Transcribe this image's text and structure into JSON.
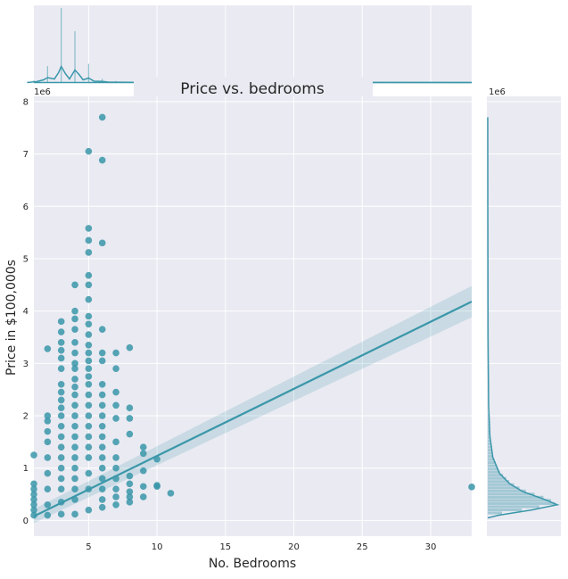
{
  "chart_data": {
    "type": "scatter",
    "title": "Price vs. bedrooms",
    "xlabel": "No. Bedrooms",
    "ylabel": "Price in $100,000s",
    "y_offset_label": "1e6",
    "marginal_y_offset_label": "1e6",
    "xlim": [
      1,
      33
    ],
    "ylim": [
      -0.3,
      8.1
    ],
    "x_ticks": [
      5,
      10,
      15,
      20,
      25,
      30
    ],
    "y_ticks": [
      0,
      1,
      2,
      3,
      4,
      5,
      6,
      7,
      8
    ],
    "grid": true,
    "color": "#3a97a9",
    "regression": {
      "x": [
        1,
        33
      ],
      "y": [
        0.08,
        4.18
      ],
      "ci_upper": [
        0.22,
        4.48
      ],
      "ci_lower": [
        -0.05,
        3.88
      ]
    },
    "points": {
      "x": [
        1,
        1,
        1,
        1,
        1,
        1,
        1,
        1,
        2,
        2,
        2,
        2,
        2,
        2,
        2,
        2,
        2,
        2,
        3,
        3,
        3,
        3,
        3,
        3,
        3,
        3,
        3,
        3,
        3,
        3,
        3,
        3,
        3,
        3,
        3,
        3,
        3,
        3,
        4,
        4,
        4,
        4,
        4,
        4,
        4,
        4,
        4,
        4,
        4,
        4,
        4,
        4,
        4,
        4,
        4,
        4,
        4,
        4,
        4,
        4,
        5,
        5,
        5,
        5,
        5,
        5,
        5,
        5,
        5,
        5,
        5,
        5,
        5,
        5,
        5,
        5,
        5,
        5,
        5,
        5,
        5,
        5,
        5,
        5,
        5,
        5,
        6,
        6,
        6,
        6,
        6,
        6,
        6,
        6,
        6,
        6,
        6,
        6,
        6,
        6,
        6,
        6,
        6,
        6,
        6,
        7,
        7,
        7,
        7,
        7,
        7,
        7,
        7,
        7,
        7,
        7,
        7,
        8,
        8,
        8,
        8,
        8,
        8,
        8,
        8,
        8,
        9,
        9,
        9,
        9,
        9,
        10,
        10,
        10,
        11,
        33
      ],
      "y": [
        1.25,
        0.7,
        0.6,
        0.5,
        0.4,
        0.3,
        0.2,
        0.1,
        3.28,
        2.0,
        1.9,
        1.7,
        1.5,
        1.2,
        0.9,
        0.6,
        0.3,
        0.1,
        3.8,
        3.6,
        3.4,
        3.25,
        3.1,
        2.9,
        2.6,
        2.45,
        2.3,
        2.15,
        2.0,
        1.8,
        1.6,
        1.4,
        1.2,
        1.0,
        0.8,
        0.6,
        0.35,
        0.12,
        4.5,
        4.0,
        3.85,
        3.65,
        3.4,
        3.2,
        3.0,
        2.9,
        2.7,
        2.55,
        2.4,
        2.2,
        2.0,
        1.8,
        1.6,
        1.4,
        1.2,
        1.0,
        0.8,
        0.6,
        0.4,
        0.12,
        7.05,
        5.58,
        5.35,
        5.12,
        4.68,
        4.5,
        4.22,
        3.9,
        3.75,
        3.55,
        3.35,
        3.2,
        3.05,
        2.9,
        2.75,
        2.6,
        2.4,
        2.2,
        2.0,
        1.8,
        1.6,
        1.4,
        1.2,
        0.9,
        0.6,
        0.2,
        7.7,
        6.88,
        5.3,
        3.65,
        3.2,
        3.05,
        2.6,
        2.4,
        2.2,
        2.0,
        1.8,
        1.6,
        1.4,
        1.2,
        1.0,
        0.8,
        0.6,
        0.4,
        0.25,
        3.2,
        2.9,
        2.45,
        2.2,
        1.95,
        1.5,
        1.2,
        1.0,
        0.8,
        0.6,
        0.45,
        0.3,
        3.3,
        2.15,
        1.95,
        1.65,
        0.85,
        0.7,
        0.55,
        0.45,
        0.35,
        1.4,
        1.28,
        0.95,
        0.65,
        0.45,
        1.17,
        0.67,
        0.65,
        0.52,
        0.64
      ]
    },
    "marginal_x": {
      "type": "histogram-kde",
      "bars": [
        {
          "x": 1,
          "h": 0.03
        },
        {
          "x": 2,
          "h": 0.22
        },
        {
          "x": 3,
          "h": 1.0
        },
        {
          "x": 4,
          "h": 0.69
        },
        {
          "x": 5,
          "h": 0.25
        },
        {
          "x": 6,
          "h": 0.05
        },
        {
          "x": 7,
          "h": 0.02
        },
        {
          "x": 8,
          "h": 0.01
        }
      ],
      "kde": [
        {
          "x": 0.5,
          "d": 0.0
        },
        {
          "x": 1.2,
          "d": 0.01
        },
        {
          "x": 1.7,
          "d": 0.03
        },
        {
          "x": 2.0,
          "d": 0.055
        },
        {
          "x": 2.5,
          "d": 0.04
        },
        {
          "x": 2.8,
          "d": 0.11
        },
        {
          "x": 3.0,
          "d": 0.18
        },
        {
          "x": 3.3,
          "d": 0.1
        },
        {
          "x": 3.6,
          "d": 0.04
        },
        {
          "x": 4.0,
          "d": 0.14
        },
        {
          "x": 4.3,
          "d": 0.09
        },
        {
          "x": 4.6,
          "d": 0.03
        },
        {
          "x": 5.0,
          "d": 0.05
        },
        {
          "x": 5.4,
          "d": 0.015
        },
        {
          "x": 6.0,
          "d": 0.012
        },
        {
          "x": 6.5,
          "d": 0.004
        },
        {
          "x": 8.0,
          "d": 0.002
        },
        {
          "x": 33.0,
          "d": 0.0
        }
      ]
    },
    "marginal_y": {
      "type": "histogram-kde",
      "kde": [
        {
          "y": 0.05,
          "d": 0.0
        },
        {
          "y": 0.1,
          "d": 0.15
        },
        {
          "y": 0.2,
          "d": 0.6
        },
        {
          "y": 0.3,
          "d": 0.95
        },
        {
          "y": 0.4,
          "d": 0.78
        },
        {
          "y": 0.55,
          "d": 0.48
        },
        {
          "y": 0.7,
          "d": 0.3
        },
        {
          "y": 0.9,
          "d": 0.16
        },
        {
          "y": 1.2,
          "d": 0.07
        },
        {
          "y": 1.6,
          "d": 0.03
        },
        {
          "y": 2.2,
          "d": 0.012
        },
        {
          "y": 3.5,
          "d": 0.004
        },
        {
          "y": 6.0,
          "d": 0.001
        },
        {
          "y": 7.7,
          "d": 0.0
        }
      ]
    }
  }
}
